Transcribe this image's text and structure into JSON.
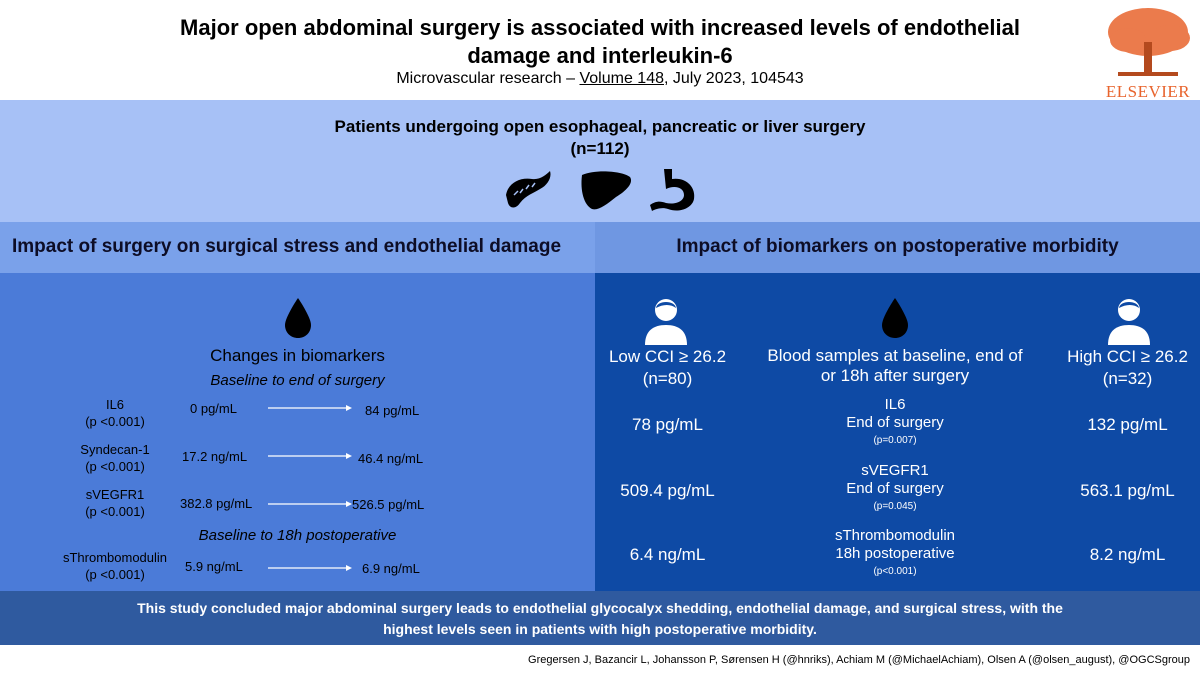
{
  "header": {
    "title_line1": "Major open abdominal surgery is associated with increased levels of endothelial",
    "title_line2": "damage and interleukin-6",
    "journal_prefix": "Microvascular research – ",
    "journal_volume": "Volume 148",
    "journal_suffix": ", July 2023, 104543",
    "publisher": "ELSEVIER"
  },
  "cohort": {
    "line1": "Patients undergoing  open esophageal, pancreatic or liver surgery",
    "line2": "(n=112)",
    "icons": [
      "pancreas-icon",
      "liver-icon",
      "stomach-icon"
    ]
  },
  "left": {
    "heading": "Impact of surgery on surgical stress and endothelial damage",
    "changes_title": "Changes in biomarkers",
    "subtitle1": "Baseline to end of surgery",
    "subtitle2": "Baseline to 18h postoperative",
    "biomarkers": [
      {
        "name": "IL6",
        "p": "(p <0.001)",
        "from": "0 pg/mL",
        "to": "84 pg/mL"
      },
      {
        "name": "Syndecan-1",
        "p": "(p <0.001)",
        "from": "17.2 ng/mL",
        "to": "46.4 ng/mL"
      },
      {
        "name": "sVEGFR1",
        "p": "(p <0.001)",
        "from": "382.8 pg/mL",
        "to": "526.5 pg/mL"
      },
      {
        "name": "sThrombomodulin",
        "p": "(p <0.001)",
        "from": "5.9 ng/mL",
        "to": "6.9 ng/mL"
      }
    ]
  },
  "right": {
    "heading": "Impact of biomarkers on postoperative morbidity",
    "low_label": "Low CCI ≥ 26.2",
    "low_n": "(n=80)",
    "high_label": "High CCI ≥ 26.2",
    "high_n": "(n=32)",
    "samples_line1": "Blood samples at baseline, end of",
    "samples_line2": "or 18h after surgery",
    "rows": [
      {
        "low": "78 pg/mL",
        "marker": "IL6",
        "time": "End of surgery",
        "p": "(p=0.007)",
        "high": "132 pg/mL"
      },
      {
        "low": "509.4 pg/mL",
        "marker": "sVEGFR1",
        "time": "End of surgery",
        "p": "(p=0.045)",
        "high": "563.1 pg/mL"
      },
      {
        "low": "6.4 ng/mL",
        "marker": "sThrombomodulin",
        "time": "18h postoperative",
        "p": "(p<0.001)",
        "high": "8.2 ng/mL"
      }
    ]
  },
  "conclusion": {
    "line1": "This study concluded major abdominal surgery leads to endothelial glycocalyx shedding, endothelial damage, and surgical stress, with the",
    "line2": "highest levels seen in patients with high postoperative morbidity."
  },
  "authors": "Gregersen J, Bazancir L, Johansson P, Sørensen H (@hnriks), Achiam M (@MichaelAchiam), Olsen A (@olsen_august), @OGCSgroup",
  "colors": {
    "cohort_bg": "#a7c1f6",
    "left_panel": "#4b7bd8",
    "right_panel": "#0e4aa5",
    "conclusion_bg": "#2f5a9f",
    "publisher": "#e8642d"
  }
}
